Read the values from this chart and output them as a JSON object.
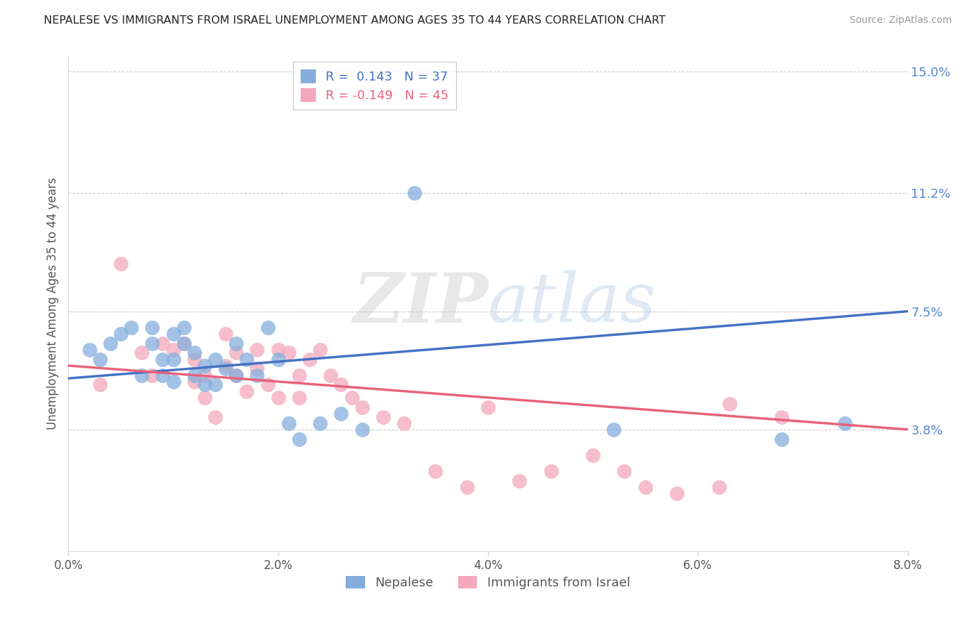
{
  "title": "NEPALESE VS IMMIGRANTS FROM ISRAEL UNEMPLOYMENT AMONG AGES 35 TO 44 YEARS CORRELATION CHART",
  "source": "Source: ZipAtlas.com",
  "ylabel": "Unemployment Among Ages 35 to 44 years",
  "xlim": [
    0.0,
    0.08
  ],
  "ylim": [
    0.0,
    0.155
  ],
  "xtick_labels": [
    "0.0%",
    "2.0%",
    "4.0%",
    "6.0%",
    "8.0%"
  ],
  "xtick_vals": [
    0.0,
    0.02,
    0.04,
    0.06,
    0.08
  ],
  "ytick_labels_right": [
    "3.8%",
    "7.5%",
    "11.2%",
    "15.0%"
  ],
  "ytick_vals_right": [
    0.038,
    0.075,
    0.112,
    0.15
  ],
  "blue_R": "0.143",
  "blue_N": "37",
  "pink_R": "-0.149",
  "pink_N": "45",
  "blue_color": "#85AEDD",
  "pink_color": "#F4A8BC",
  "blue_line_color": "#4472C4",
  "pink_line_color": "#E8627A",
  "watermark_zip": "ZIP",
  "watermark_atlas": "atlas",
  "legend_label_blue": "Nepalese",
  "legend_label_pink": "Immigrants from Israel",
  "blue_x": [
    0.002,
    0.003,
    0.004,
    0.005,
    0.006,
    0.007,
    0.008,
    0.008,
    0.009,
    0.009,
    0.01,
    0.01,
    0.01,
    0.011,
    0.011,
    0.012,
    0.012,
    0.013,
    0.013,
    0.014,
    0.014,
    0.015,
    0.016,
    0.016,
    0.017,
    0.018,
    0.019,
    0.02,
    0.021,
    0.022,
    0.024,
    0.026,
    0.028,
    0.033,
    0.052,
    0.068,
    0.074
  ],
  "blue_y": [
    0.063,
    0.06,
    0.065,
    0.068,
    0.07,
    0.055,
    0.07,
    0.065,
    0.06,
    0.055,
    0.068,
    0.06,
    0.053,
    0.07,
    0.065,
    0.062,
    0.055,
    0.058,
    0.052,
    0.06,
    0.052,
    0.057,
    0.065,
    0.055,
    0.06,
    0.055,
    0.07,
    0.06,
    0.04,
    0.035,
    0.04,
    0.043,
    0.038,
    0.112,
    0.038,
    0.035,
    0.04
  ],
  "pink_x": [
    0.003,
    0.005,
    0.007,
    0.008,
    0.009,
    0.01,
    0.011,
    0.012,
    0.012,
    0.013,
    0.013,
    0.014,
    0.015,
    0.015,
    0.016,
    0.016,
    0.017,
    0.018,
    0.018,
    0.019,
    0.02,
    0.02,
    0.021,
    0.022,
    0.022,
    0.023,
    0.024,
    0.025,
    0.026,
    0.027,
    0.028,
    0.03,
    0.032,
    0.035,
    0.038,
    0.04,
    0.043,
    0.046,
    0.05,
    0.053,
    0.055,
    0.058,
    0.062,
    0.063,
    0.068
  ],
  "pink_y": [
    0.052,
    0.09,
    0.062,
    0.055,
    0.065,
    0.063,
    0.065,
    0.06,
    0.053,
    0.055,
    0.048,
    0.042,
    0.068,
    0.058,
    0.062,
    0.055,
    0.05,
    0.063,
    0.057,
    0.052,
    0.063,
    0.048,
    0.062,
    0.055,
    0.048,
    0.06,
    0.063,
    0.055,
    0.052,
    0.048,
    0.045,
    0.042,
    0.04,
    0.025,
    0.02,
    0.045,
    0.022,
    0.025,
    0.03,
    0.025,
    0.02,
    0.018,
    0.02,
    0.046,
    0.042
  ]
}
